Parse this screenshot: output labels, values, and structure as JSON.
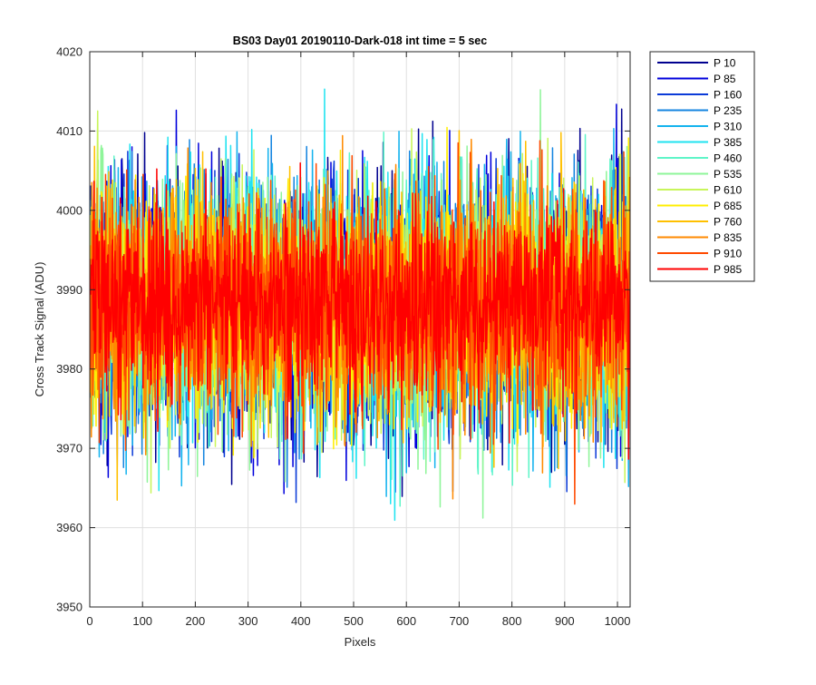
{
  "chart_data": {
    "type": "line",
    "title": "BS03 Day01 20190110-Dark-018 int time = 5 sec",
    "xlabel": "Pixels",
    "ylabel": "Cross Track Signal (ADU)",
    "xlim": [
      0,
      1024
    ],
    "ylim": [
      3950,
      4020
    ],
    "x_ticks": [
      0,
      100,
      200,
      300,
      400,
      500,
      600,
      700,
      800,
      900,
      1000
    ],
    "y_ticks": [
      3950,
      3960,
      3970,
      3980,
      3990,
      4000,
      4010,
      4020
    ],
    "grid": true,
    "legend_position": "outside-top-right",
    "num_points_per_series": 1024,
    "series": [
      {
        "name": "P 10",
        "color": "#00008f",
        "mean": 3988,
        "noise": 8,
        "seed": 11
      },
      {
        "name": "P 85",
        "color": "#0000dc",
        "mean": 3988,
        "noise": 8,
        "seed": 23
      },
      {
        "name": "P 160",
        "color": "#0b3bd8",
        "mean": 3988,
        "noise": 8,
        "seed": 37
      },
      {
        "name": "P 235",
        "color": "#1585e0",
        "mean": 3988,
        "noise": 8,
        "seed": 41
      },
      {
        "name": "P 310",
        "color": "#14b3ee",
        "mean": 3988,
        "noise": 8,
        "seed": 53
      },
      {
        "name": "P 385",
        "color": "#1fe3f0",
        "mean": 3988,
        "noise": 8,
        "seed": 67
      },
      {
        "name": "P 460",
        "color": "#5ff5c8",
        "mean": 3988,
        "noise": 8,
        "seed": 71
      },
      {
        "name": "P 535",
        "color": "#8ff59a",
        "mean": 3988,
        "noise": 8,
        "seed": 83
      },
      {
        "name": "P 610",
        "color": "#c8f55a",
        "mean": 3988,
        "noise": 8,
        "seed": 97
      },
      {
        "name": "P 685",
        "color": "#ffee00",
        "mean": 3988,
        "noise": 7,
        "seed": 101
      },
      {
        "name": "P 760",
        "color": "#ffc000",
        "mean": 3988,
        "noise": 7,
        "seed": 113
      },
      {
        "name": "P 835",
        "color": "#ff8a00",
        "mean": 3988,
        "noise": 7,
        "seed": 127
      },
      {
        "name": "P 910",
        "color": "#ff4a00",
        "mean": 3988,
        "noise": 7,
        "seed": 131
      },
      {
        "name": "P 985",
        "color": "#ff0000",
        "mean": 3988,
        "noise": 6,
        "seed": 149
      }
    ]
  }
}
